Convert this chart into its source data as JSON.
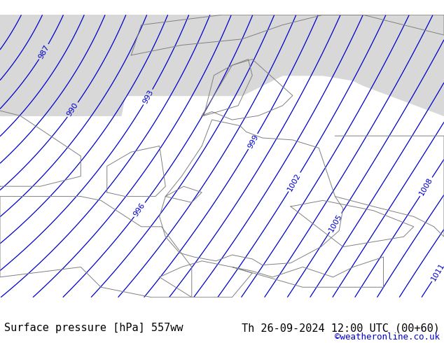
{
  "title_left": "Surface pressure [hPa] 557ww",
  "title_right": "Th 26-09-2024 12:00 UTC (00+60)",
  "copyright": "©weatheronline.co.uk",
  "bg_color": "#d0d0d0",
  "land_color": "#c8e6a0",
  "sea_color": "#d8d8d8",
  "isobar_color": "#0000cc",
  "label_color": "#0000cc",
  "border_color": "#808080",
  "footer_bg": "#f0f0f0",
  "footer_text_color": "#000000",
  "copyright_color": "#0000cc",
  "font_size_footer": 11,
  "font_size_labels": 9,
  "pressure_min": 984,
  "pressure_max": 1013,
  "pressure_step": 1,
  "figsize": [
    6.34,
    4.9
  ],
  "dpi": 100
}
